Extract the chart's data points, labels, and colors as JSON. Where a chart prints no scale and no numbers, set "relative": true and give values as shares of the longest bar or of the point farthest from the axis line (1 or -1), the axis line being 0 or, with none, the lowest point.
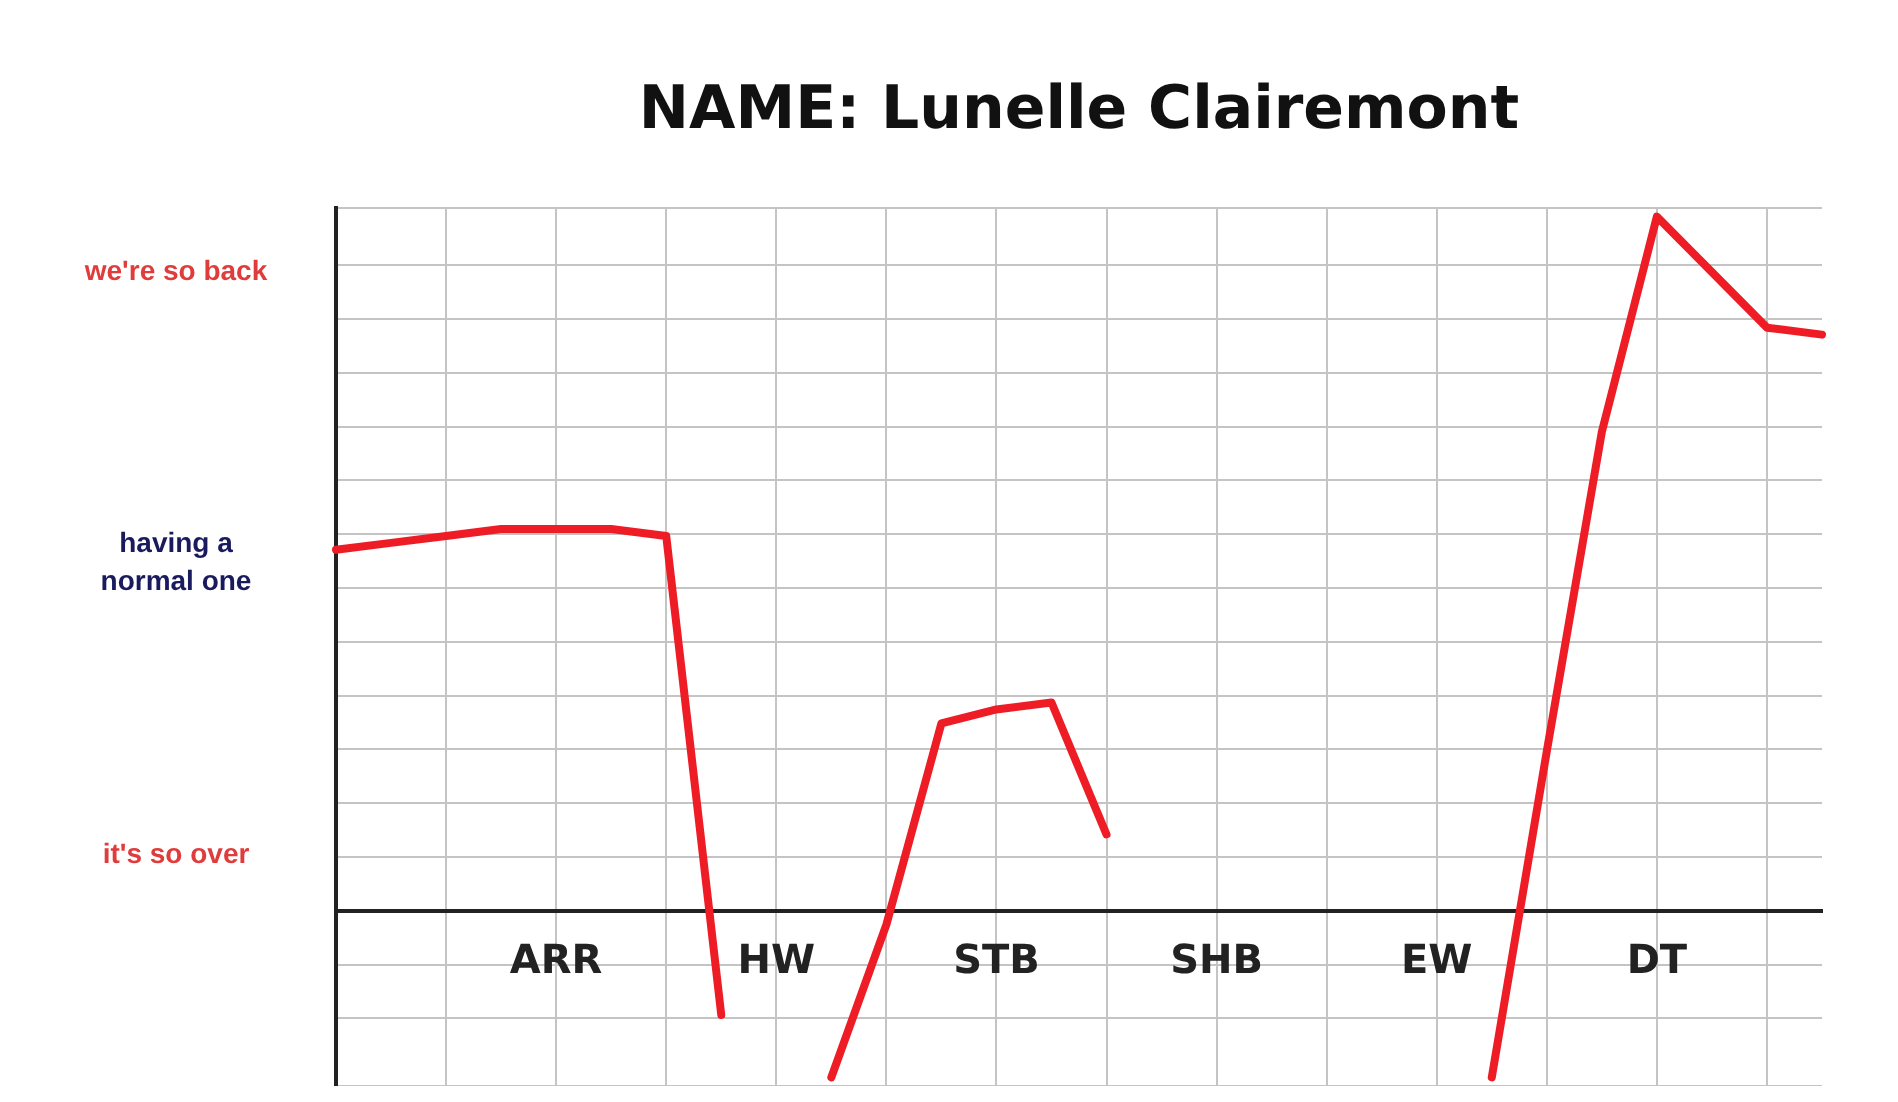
{
  "chart_data": {
    "type": "line",
    "title": "NAME: Lunelle Clairemont",
    "relative": true,
    "categories": [
      null,
      null,
      null,
      null,
      "ARR",
      null,
      null,
      null,
      "HW",
      null,
      null,
      null,
      "STB",
      null,
      null,
      null,
      "SHB",
      null,
      null,
      null,
      "EW",
      null,
      null,
      null,
      "DT",
      null,
      null,
      null
    ],
    "series": [
      {
        "color": "#ee1c25",
        "values": [
          0.52,
          0.53,
          0.54,
          0.55,
          0.55,
          0.55,
          0.54,
          -0.15,
          null,
          -0.24,
          -0.02,
          0.27,
          0.29,
          0.3,
          0.11,
          null,
          null,
          null,
          null,
          null,
          null,
          -0.24,
          0.23,
          0.69,
          1,
          0.92,
          0.84,
          0.83
        ]
      }
    ],
    "annotations": [
      "we're so back",
      "having a normal one",
      "it's so over"
    ],
    "grid": true,
    "legend": false,
    "marker": "none",
    "line_style": "solid"
  }
}
